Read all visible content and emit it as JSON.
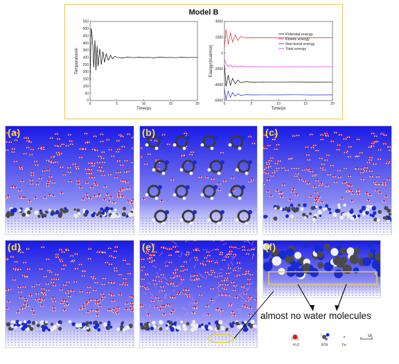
{
  "figure": {
    "title": "Model B",
    "annotation": "almost no water molecules",
    "panels": [
      {
        "label": "(a)",
        "style": "slab"
      },
      {
        "label": "(b)",
        "style": "top"
      },
      {
        "label": "(c)",
        "style": "slab"
      },
      {
        "label": "(d)",
        "style": "slab"
      },
      {
        "label": "(e)",
        "style": "hbond"
      },
      {
        "label": "(f)",
        "style": "zoom"
      }
    ],
    "key": {
      "water": "H₂O",
      "bta": "BTA",
      "fe": "Fe",
      "scale": "5Å"
    },
    "colors": {
      "panel_top": "#ffffff",
      "panel_bottom": "#1a1ae6",
      "box": "#e8c75a",
      "label": "#f6e04a"
    }
  },
  "chart_data": [
    {
      "type": "line",
      "xlabel": "Time/ps",
      "ylabel": "Temperature/k",
      "xlim": [
        0,
        20
      ],
      "ylim": [
        0,
        550
      ],
      "xticks": [
        0,
        5,
        10,
        15,
        20
      ],
      "yticks": [
        0,
        50,
        100,
        150,
        200,
        250,
        300,
        350,
        400,
        450,
        500,
        550
      ],
      "series": [
        {
          "color": "#000000",
          "x": [
            0,
            0.2,
            0.35,
            0.5,
            0.7,
            0.9,
            1.1,
            1.3,
            1.5,
            1.8,
            2.1,
            2.4,
            2.7,
            3.0,
            3.4,
            3.8,
            4.2,
            4.6,
            5,
            6,
            7,
            8,
            9,
            10,
            11,
            12,
            13,
            14,
            15,
            16,
            17,
            18,
            19,
            20
          ],
          "y": [
            140,
            500,
            470,
            390,
            230,
            420,
            210,
            380,
            240,
            360,
            250,
            340,
            265,
            325,
            280,
            315,
            290,
            308,
            300,
            296,
            302,
            298,
            301,
            299,
            300,
            297,
            302,
            299,
            300,
            298,
            301,
            299,
            300,
            300
          ]
        }
      ]
    },
    {
      "type": "line",
      "xlabel": "Time/ps",
      "ylabel": "Energy/(kcal/mol)",
      "xlim": [
        0,
        20
      ],
      "ylim": [
        -6000,
        4000
      ],
      "xticks": [
        0,
        5,
        10,
        15,
        20
      ],
      "yticks": [
        -6000,
        -4000,
        -2000,
        0,
        2000,
        4000
      ],
      "legend": "top-right",
      "series": [
        {
          "name": "Potential energy",
          "color": "#000000",
          "x": [
            0,
            0.3,
            0.7,
            1.1,
            1.5,
            2,
            2.5,
            3,
            4,
            5,
            7,
            10,
            13,
            16,
            20
          ],
          "y": [
            -1500,
            -4200,
            -2800,
            -4100,
            -3200,
            -3900,
            -3400,
            -3750,
            -3600,
            -3680,
            -3650,
            -3660,
            -3640,
            -3670,
            -3650
          ]
        },
        {
          "name": "Kinetic energy",
          "color": "#e02020",
          "x": [
            0,
            0.3,
            0.7,
            1.1,
            1.5,
            2,
            2.5,
            3,
            4,
            5,
            7,
            10,
            13,
            16,
            20
          ],
          "y": [
            700,
            3000,
            1100,
            2600,
            1400,
            2300,
            1600,
            2100,
            1900,
            1950,
            1930,
            1940,
            1920,
            1950,
            1940
          ]
        },
        {
          "name": "Non-bond energy",
          "color": "#2020e0",
          "x": [
            0,
            0.3,
            0.7,
            1.1,
            1.5,
            2,
            2.5,
            3,
            4,
            5,
            7,
            10,
            13,
            16,
            20
          ],
          "y": [
            -4500,
            -5900,
            -4800,
            -5600,
            -5000,
            -5450,
            -5150,
            -5350,
            -5250,
            -5300,
            -5280,
            -5290,
            -5270,
            -5300,
            -5290
          ]
        },
        {
          "name": "Total energy",
          "color": "#e020e0",
          "x": [
            0,
            0.3,
            0.7,
            1.1,
            1.5,
            2,
            2.5,
            3,
            4,
            5,
            7,
            10,
            13,
            16,
            20
          ],
          "y": [
            -800,
            -1300,
            -1700,
            -1500,
            -1800,
            -1600,
            -1750,
            -1650,
            -1700,
            -1710,
            -1720,
            -1715,
            -1725,
            -1720,
            -1720
          ]
        }
      ]
    }
  ]
}
